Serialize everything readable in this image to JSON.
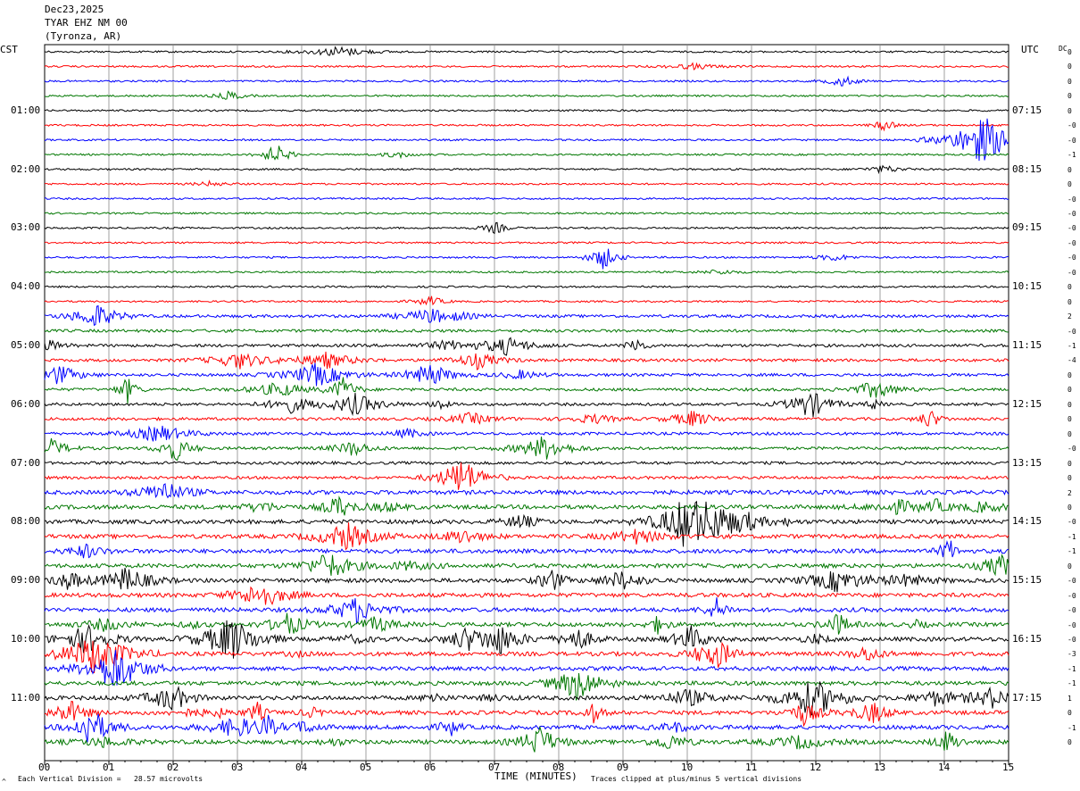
{
  "header": {
    "date": "Dec23,2025",
    "station": "TYAR EHZ NM 00",
    "location": "(Tyronza, AR)"
  },
  "left_label": "CST",
  "right_label": "UTC",
  "dc_label": "DC",
  "footer": {
    "vertical_division": "Each Vertical Division =   28.57 microvolts",
    "xlabel": "TIME (MINUTES)",
    "clip_note": "Traces clipped at plus/minus 5 vertical divisions",
    "corner_mark": "^"
  },
  "chart_data": {
    "type": "line",
    "title": "",
    "xlabel": "TIME (MINUTES)",
    "xlim": [
      0,
      15
    ],
    "x_ticks": [
      "00",
      "01",
      "02",
      "03",
      "04",
      "05",
      "06",
      "07",
      "08",
      "09",
      "10",
      "11",
      "12",
      "13",
      "14",
      "15"
    ],
    "trace_count": 48,
    "trace_colors": [
      "#000000",
      "#ff0000",
      "#0000ff",
      "#007700"
    ],
    "left_time_labels": [
      "01:00",
      "02:00",
      "03:00",
      "04:00",
      "05:00",
      "06:00",
      "07:00",
      "08:00",
      "09:00",
      "10:00",
      "11:00"
    ],
    "right_time_labels": [
      "07:15",
      "08:15",
      "09:15",
      "10:15",
      "11:15",
      "12:15",
      "13:15",
      "14:15",
      "15:15",
      "16:15",
      "17:15"
    ],
    "dc_offsets": [
      "0",
      "0",
      "0",
      "0",
      "0",
      "-0",
      "-0",
      "-1",
      "0",
      "0",
      "-0",
      "-0",
      "-0",
      "-0",
      "-0",
      "-0",
      "0",
      "0",
      "2",
      "-0",
      "-1",
      "-4",
      "0",
      "0",
      "0",
      "0",
      "0",
      "-0",
      "0",
      "0",
      "2",
      "0",
      "-0",
      "-1",
      "-1",
      "0",
      "-0",
      "-0",
      "-0",
      "-0",
      "-0",
      "-3",
      "-1",
      "-1",
      "1",
      "0",
      "-1",
      "0"
    ],
    "grid": true
  }
}
